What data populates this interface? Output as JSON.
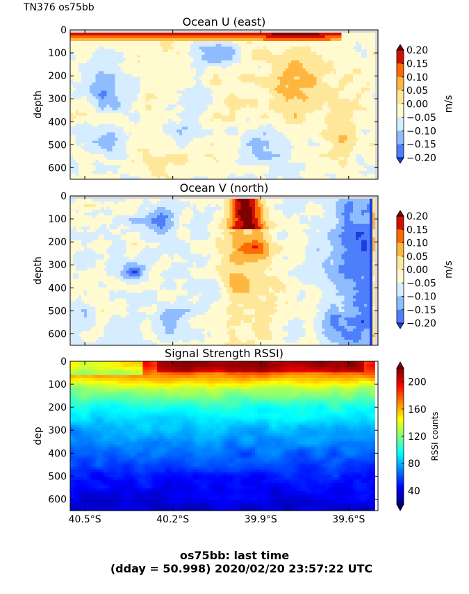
{
  "figure": {
    "corner_label": "TN376 os75bb",
    "footer_line1": "os75bb: last time",
    "footer_line2": "(dday = 50.998) 2020/02/20 23:57:22 UTC"
  },
  "chart_data": [
    {
      "type": "heatmap",
      "title": "Ocean U (east)",
      "ylabel": "depth",
      "ylim": [
        0,
        650
      ],
      "y_inverted": true,
      "yticks": [
        "0",
        "100",
        "200",
        "300",
        "400",
        "500",
        "600"
      ],
      "xlim": [
        -40.55,
        -39.5
      ],
      "x_ticklabels_shown": false,
      "colorbar": {
        "label": "m/s",
        "range": [
          -0.2,
          0.2
        ],
        "ticks": [
          "0.20",
          "0.15",
          "0.10",
          "0.05",
          "0.00",
          "−0.05",
          "−0.10",
          "−0.15",
          "−0.20"
        ],
        "colors": [
          "#7f0000",
          "#d11000",
          "#ff6a00",
          "#ffb640",
          "#ffe79a",
          "#fffad0",
          "#d6ecff",
          "#8fbbff",
          "#4e7ffb",
          "#1e3ce0"
        ],
        "extend": "both"
      },
      "features": [
        {
          "desc": "strong eastward band near surface",
          "lat_range": [
            -40.5,
            -39.62
          ],
          "depth_range": [
            20,
            45
          ],
          "value": 0.2
        },
        {
          "desc": "westward core",
          "lat_range": [
            -40.5,
            -40.3
          ],
          "depth_range": [
            150,
            350
          ],
          "value": -0.15
        },
        {
          "desc": "westward core",
          "lat_range": [
            -40.12,
            -39.95
          ],
          "depth_range": [
            50,
            150
          ],
          "value": -0.15
        },
        {
          "desc": "eastward patch",
          "lat_range": [
            -39.75,
            -39.6
          ],
          "depth_range": [
            150,
            400
          ],
          "value": 0.08
        }
      ]
    },
    {
      "type": "heatmap",
      "title": "Ocean V (north)",
      "ylabel": "depth",
      "ylim": [
        0,
        650
      ],
      "y_inverted": true,
      "yticks": [
        "0",
        "100",
        "200",
        "300",
        "400",
        "500",
        "600"
      ],
      "xlim": [
        -40.55,
        -39.5
      ],
      "x_ticklabels_shown": false,
      "colorbar": {
        "label": "m/s",
        "range": [
          -0.2,
          0.2
        ],
        "ticks": [
          "0.20",
          "0.15",
          "0.10",
          "0.05",
          "0.00",
          "−0.05",
          "−0.10",
          "−0.15",
          "−0.20"
        ],
        "colors": [
          "#7f0000",
          "#d11000",
          "#ff6a00",
          "#ffb640",
          "#ffe79a",
          "#fffad0",
          "#d6ecff",
          "#8fbbff",
          "#4e7ffb",
          "#1e3ce0"
        ],
        "extend": "both"
      },
      "features": [
        {
          "desc": "strong northward jet core",
          "lat_range": [
            -40.05,
            -39.85
          ],
          "depth_range": [
            20,
            150
          ],
          "value": 0.2
        },
        {
          "desc": "northward plume",
          "lat_range": [
            -40.0,
            -39.85
          ],
          "depth_range": [
            150,
            500
          ],
          "value": 0.08
        },
        {
          "desc": "southward region",
          "lat_range": [
            -39.75,
            -39.5
          ],
          "depth_range": [
            50,
            650
          ],
          "value": -0.15
        },
        {
          "desc": "southward patch",
          "lat_range": [
            -40.35,
            -40.2
          ],
          "depth_range": [
            50,
            200
          ],
          "value": -0.15
        }
      ]
    },
    {
      "type": "heatmap",
      "title": "Signal Strength RSSI)",
      "ylabel": "dep",
      "ylim": [
        0,
        650
      ],
      "y_inverted": true,
      "yticks": [
        "0",
        "100",
        "200",
        "300",
        "400",
        "500",
        "600"
      ],
      "xlim": [
        -40.55,
        -39.5
      ],
      "xticks": [
        "40.5°S",
        "40.2°S",
        "39.9°S",
        "39.6°S"
      ],
      "colorbar": {
        "label": "RSSI counts",
        "range": [
          20,
          220
        ],
        "ticks": [
          "200",
          "160",
          "120",
          "80",
          "40"
        ],
        "extend": "both"
      },
      "profile": {
        "depth": [
          20,
          60,
          120,
          200,
          300,
          400,
          500,
          600,
          650
        ],
        "rssi": [
          190,
          170,
          130,
          100,
          80,
          65,
          50,
          40,
          35
        ]
      }
    }
  ]
}
